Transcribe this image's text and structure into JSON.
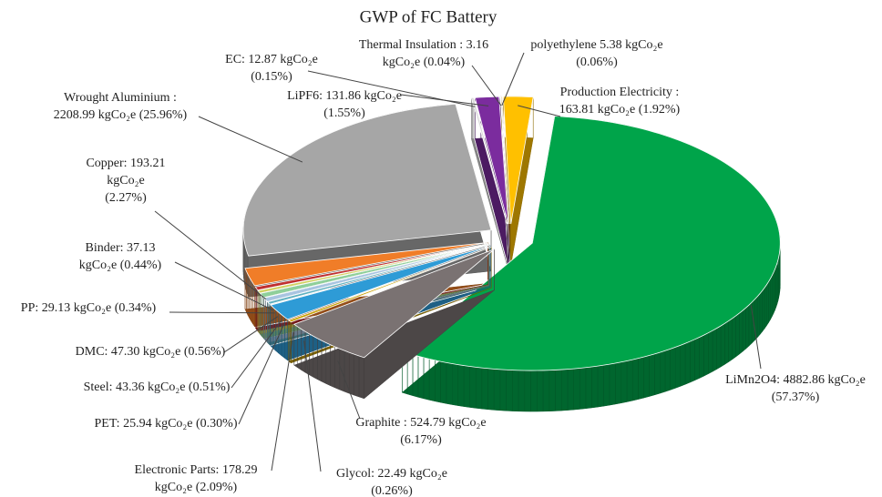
{
  "chart_data": {
    "type": "pie3d",
    "title": "GWP of FC Battery",
    "slices": [
      {
        "label_lines": [
          "LiMn2O4: 4882.86 kgCo₂e",
          "(57.37%)"
        ],
        "value": 4882.86,
        "percent": 57.37,
        "color": "#00a44a"
      },
      {
        "label_lines": [
          "Graphite : 524.79 kgCo₂e",
          "(6.17%)"
        ],
        "value": 524.79,
        "percent": 6.17,
        "color": "#7a7272"
      },
      {
        "label_lines": [
          "Glycol: 22.49 kgCo₂e",
          "(0.26%)"
        ],
        "value": 22.49,
        "percent": 0.26,
        "color": "#c9a000"
      },
      {
        "label_lines": [
          "Electronic Parts: 178.29",
          "kgCo₂e (2.09%)"
        ],
        "value": 178.29,
        "percent": 2.09,
        "color": "#2e9bd6"
      },
      {
        "label_lines": [
          "PET: 25.94 kgCo₂e (0.30%)"
        ],
        "value": 25.94,
        "percent": 0.3,
        "color": "#5fb0c0"
      },
      {
        "label_lines": [
          "Steel: 43.36 kgCo₂e (0.51%)"
        ],
        "value": 43.36,
        "percent": 0.51,
        "color": "#a8c4e0"
      },
      {
        "label_lines": [
          "DMC: 47.30 kgCo₂e (0.56%)"
        ],
        "value": 47.3,
        "percent": 0.56,
        "color": "#8fcf9a"
      },
      {
        "label_lines": [
          "PP: 29.13 kgCo₂e (0.34%)"
        ],
        "value": 29.13,
        "percent": 0.34,
        "color": "#d2d060"
      },
      {
        "label_lines": [
          "Binder: 37.13",
          "kgCo₂e (0.44%)"
        ],
        "value": 37.13,
        "percent": 0.44,
        "color": "#c03030"
      },
      {
        "label_lines": [
          "Copper: 193.21",
          "kgCo₂e",
          "(2.27%)"
        ],
        "value": 193.21,
        "percent": 2.27,
        "color": "#f07d28"
      },
      {
        "label_lines": [
          "Wrought Aluminium :",
          "2208.99 kgCo₂e (25.96%)"
        ],
        "value": 2208.99,
        "percent": 25.96,
        "color": "#a6a6a6"
      },
      {
        "label_lines": [
          "EC: 12.87 kgCo₂e",
          "(0.15%)"
        ],
        "value": 12.87,
        "percent": 0.15,
        "color": "#d9d9d9"
      },
      {
        "label_lines": [
          "LiPF6: 131.86 kgCo₂e",
          "(1.55%)"
        ],
        "value": 131.86,
        "percent": 1.55,
        "color": "#7b2c9e"
      },
      {
        "label_lines": [
          "Thermal Insulation : 3.16",
          "kgCo₂e (0.04%)"
        ],
        "value": 3.16,
        "percent": 0.04,
        "color": "#4a1a6a"
      },
      {
        "label_lines": [
          "polyethylene 5.38 kgCo₂e",
          "(0.06%)"
        ],
        "value": 5.38,
        "percent": 0.06,
        "color": "#c08000"
      },
      {
        "label_lines": [
          "Production Electricity :",
          "163.81 kgCo₂e (1.92%)"
        ],
        "value": 163.81,
        "percent": 1.92,
        "color": "#ffc000"
      }
    ]
  }
}
